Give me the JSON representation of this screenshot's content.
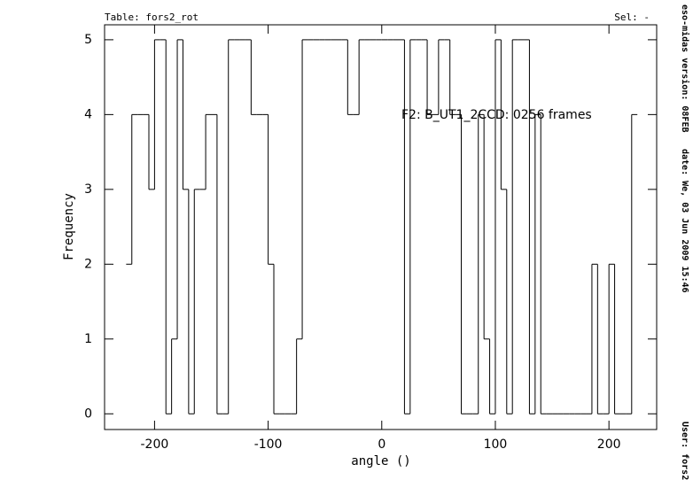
{
  "chart_data": {
    "type": "histogram",
    "header_left": "Table: fors2_rot",
    "header_right": "Sel: -",
    "annotation": "F2: B_UT1_2CCD: 0256 frames",
    "x_label": "angle ()",
    "y_label": "Frequency",
    "side_texts": [
      "eso-midas version: 08FEB",
      "date: We, 03 Jun 2009 15:46",
      "User: fors2"
    ],
    "bins": [
      -225,
      -220,
      -215,
      -210,
      -205,
      -200,
      -195,
      -190,
      -185,
      -180,
      -175,
      -170,
      -165,
      -160,
      -155,
      -150,
      -145,
      -140,
      -135,
      -130,
      -125,
      -120,
      -115,
      -110,
      -105,
      -100,
      -95,
      -90,
      -85,
      -80,
      -75,
      -70,
      -65,
      -60,
      -55,
      -50,
      -45,
      -40,
      -35,
      -30,
      -25,
      -20,
      -15,
      -10,
      -5,
      0,
      5,
      10,
      15,
      20,
      25,
      30,
      35,
      40,
      45,
      50,
      55,
      60,
      65,
      70,
      75,
      80,
      85,
      90,
      95,
      100,
      105,
      110,
      115,
      120,
      125,
      130,
      135,
      140,
      145,
      150,
      155,
      160,
      165,
      170,
      175,
      180,
      185,
      190,
      195,
      200,
      205,
      210,
      215,
      220,
      225
    ],
    "values": [
      2,
      4,
      4,
      4,
      3,
      5,
      5,
      0,
      1,
      5,
      3,
      0,
      3,
      3,
      4,
      4,
      0,
      0,
      5,
      5,
      5,
      5,
      4,
      4,
      4,
      2,
      0,
      0,
      0,
      0,
      1,
      5,
      5,
      5,
      5,
      5,
      5,
      5,
      5,
      4,
      4,
      5,
      5,
      5,
      5,
      5,
      5,
      5,
      5,
      0,
      5,
      5,
      5,
      4,
      4,
      5,
      5,
      4,
      4,
      0,
      0,
      0,
      4,
      1,
      0,
      5,
      3,
      0,
      5,
      5,
      5,
      0,
      4,
      0,
      0,
      0,
      0,
      0,
      0,
      0,
      0,
      0,
      2,
      0,
      0,
      2,
      0,
      0,
      0,
      4
    ],
    "color": "#000000",
    "xlim": [
      -244,
      242
    ],
    "ylim": [
      -0.21,
      5.2
    ],
    "xticks": [
      -200,
      -100,
      0,
      100,
      200
    ],
    "yticks": [
      0,
      1,
      2,
      3,
      4,
      5
    ]
  }
}
